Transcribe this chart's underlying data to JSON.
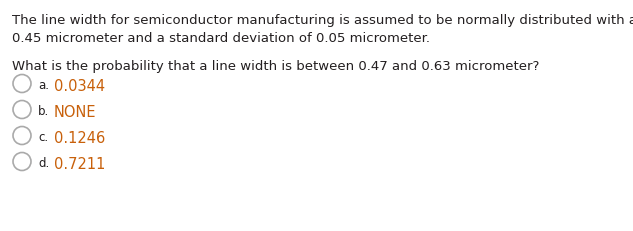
{
  "background_color": "#ffffff",
  "paragraph1_line1": "The line width for semiconductor manufacturing is assumed to be normally distributed with a mean of",
  "paragraph1_line2": "0.45 micrometer and a standard deviation of 0.05 micrometer.",
  "paragraph2": "What is the probability that a line width is between 0.47 and 0.63 micrometer?",
  "options": [
    {
      "label": "a.",
      "value": "0.0344"
    },
    {
      "label": "b.",
      "value": "NONE"
    },
    {
      "label": "c.",
      "value": "0.1246"
    },
    {
      "label": "d.",
      "value": "0.7211"
    }
  ],
  "text_color_black": "#231f20",
  "text_color_orange": "#c8600a",
  "circle_edge_color": "#aaaaaa",
  "font_size_body": 9.5,
  "font_size_label": 8.5,
  "font_size_value": 10.5
}
